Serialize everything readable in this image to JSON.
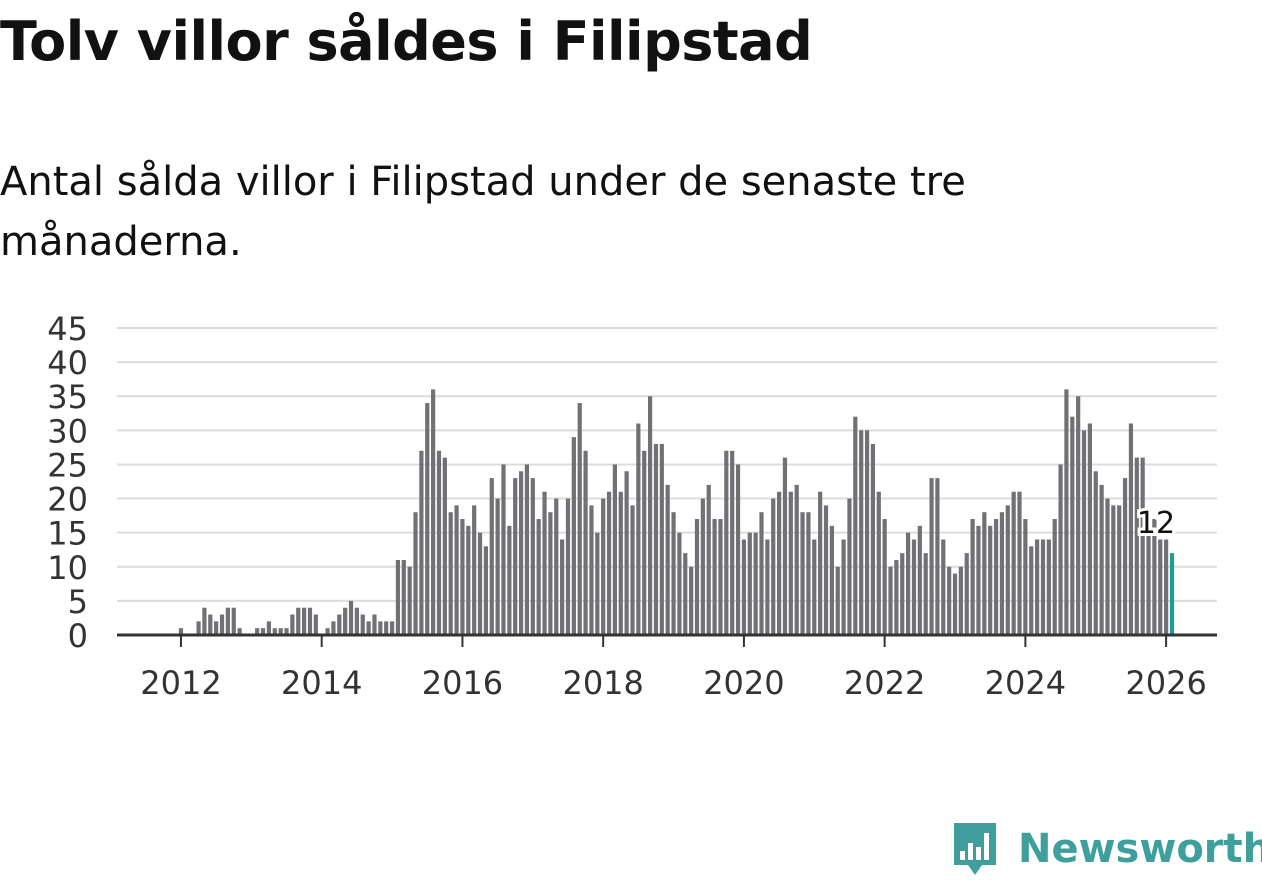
{
  "title": "Tolv villor såldes i Filipstad",
  "subtitle": "Antal sålda villor i Filipstad under de senaste tre månaderna.",
  "brand": {
    "name": "Newsworthy",
    "logo_icon": "newsworthy-bar-chart-icon",
    "color": "#3f9f9c"
  },
  "colors": {
    "bar": "#717074",
    "highlight": "#1a9e98",
    "grid": "#dcdcdc",
    "axis": "#333333",
    "tick_text": "#333333"
  },
  "chart_data": {
    "type": "bar",
    "title": "Tolv villor såldes i Filipstad",
    "subtitle": "Antal sålda villor i Filipstad under de senaste tre månaderna.",
    "xlabel": "",
    "ylabel": "",
    "ylim": [
      0,
      45
    ],
    "yticks": [
      0,
      5,
      10,
      15,
      20,
      25,
      30,
      35,
      40,
      45
    ],
    "xticks": [
      "2012",
      "2014",
      "2016",
      "2018",
      "2020",
      "2022",
      "2024",
      "2026"
    ],
    "grid": true,
    "x_start": "2011-01",
    "x_end": "2026-01",
    "values": [
      0,
      0,
      0,
      0,
      0,
      0,
      0,
      0,
      0,
      0,
      0,
      0,
      1,
      0,
      0,
      2,
      4,
      3,
      2,
      3,
      4,
      4,
      1,
      0,
      0,
      1,
      1,
      2,
      1,
      1,
      1,
      3,
      4,
      4,
      4,
      3,
      0,
      1,
      2,
      3,
      4,
      5,
      4,
      3,
      2,
      3,
      2,
      2,
      2,
      11,
      11,
      10,
      18,
      27,
      34,
      36,
      27,
      26,
      18,
      19,
      17,
      16,
      19,
      15,
      13,
      23,
      20,
      25,
      16,
      23,
      24,
      25,
      23,
      17,
      21,
      18,
      20,
      14,
      20,
      29,
      34,
      27,
      19,
      15,
      20,
      21,
      25,
      21,
      24,
      19,
      31,
      27,
      35,
      28,
      28,
      22,
      18,
      15,
      12,
      10,
      17,
      20,
      22,
      17,
      17,
      27,
      27,
      25,
      14,
      15,
      15,
      18,
      14,
      20,
      21,
      26,
      21,
      22,
      18,
      18,
      14,
      21,
      19,
      16,
      10,
      14,
      20,
      32,
      30,
      30,
      28,
      21,
      17,
      10,
      11,
      12,
      15,
      14,
      16,
      12,
      23,
      23,
      14,
      10,
      9,
      10,
      12,
      17,
      16,
      18,
      16,
      17,
      18,
      19,
      21,
      21,
      17,
      13,
      14,
      14,
      14,
      17,
      25,
      36,
      32,
      35,
      30,
      31,
      24,
      22,
      20,
      19,
      19,
      23,
      31,
      26,
      26,
      18,
      17,
      14,
      14,
      12
    ],
    "highlight": {
      "index": 181,
      "label": "12"
    }
  }
}
